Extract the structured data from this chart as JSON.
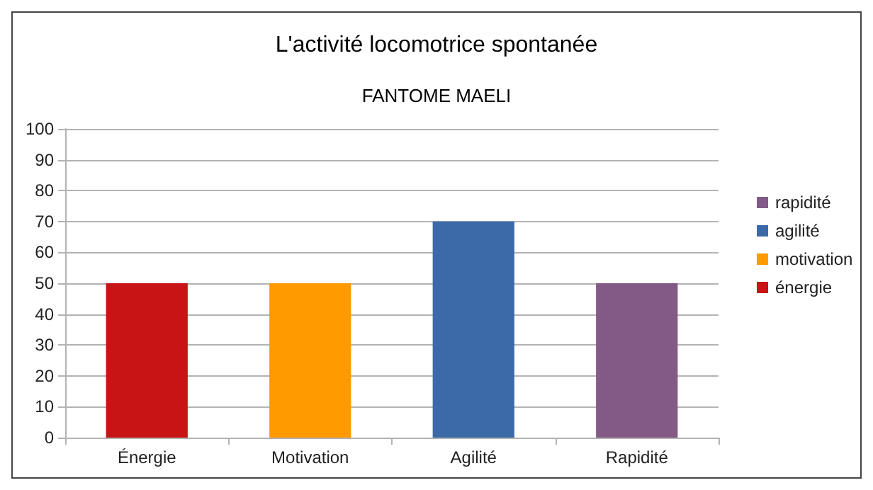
{
  "chart_data": {
    "type": "bar",
    "title": "L'activité locomotrice spontanée",
    "subtitle": "FANTOME MAELI",
    "categories": [
      "Énergie",
      "Motivation",
      "Agilité",
      "Rapidité"
    ],
    "series": [
      {
        "name": "énergie",
        "color": "#c81414",
        "values": [
          50,
          null,
          null,
          null
        ]
      },
      {
        "name": "motivation",
        "color": "#ff9a00",
        "values": [
          null,
          50,
          null,
          null
        ]
      },
      {
        "name": "agilité",
        "color": "#3c6aa8",
        "values": [
          null,
          null,
          70,
          null
        ]
      },
      {
        "name": "rapidité",
        "color": "#835a86",
        "values": [
          null,
          null,
          null,
          50
        ]
      }
    ],
    "ylim": [
      0,
      100
    ],
    "yticks": [
      0,
      10,
      20,
      30,
      40,
      50,
      60,
      70,
      80,
      90,
      100
    ],
    "grid": "y",
    "legend": "right"
  }
}
